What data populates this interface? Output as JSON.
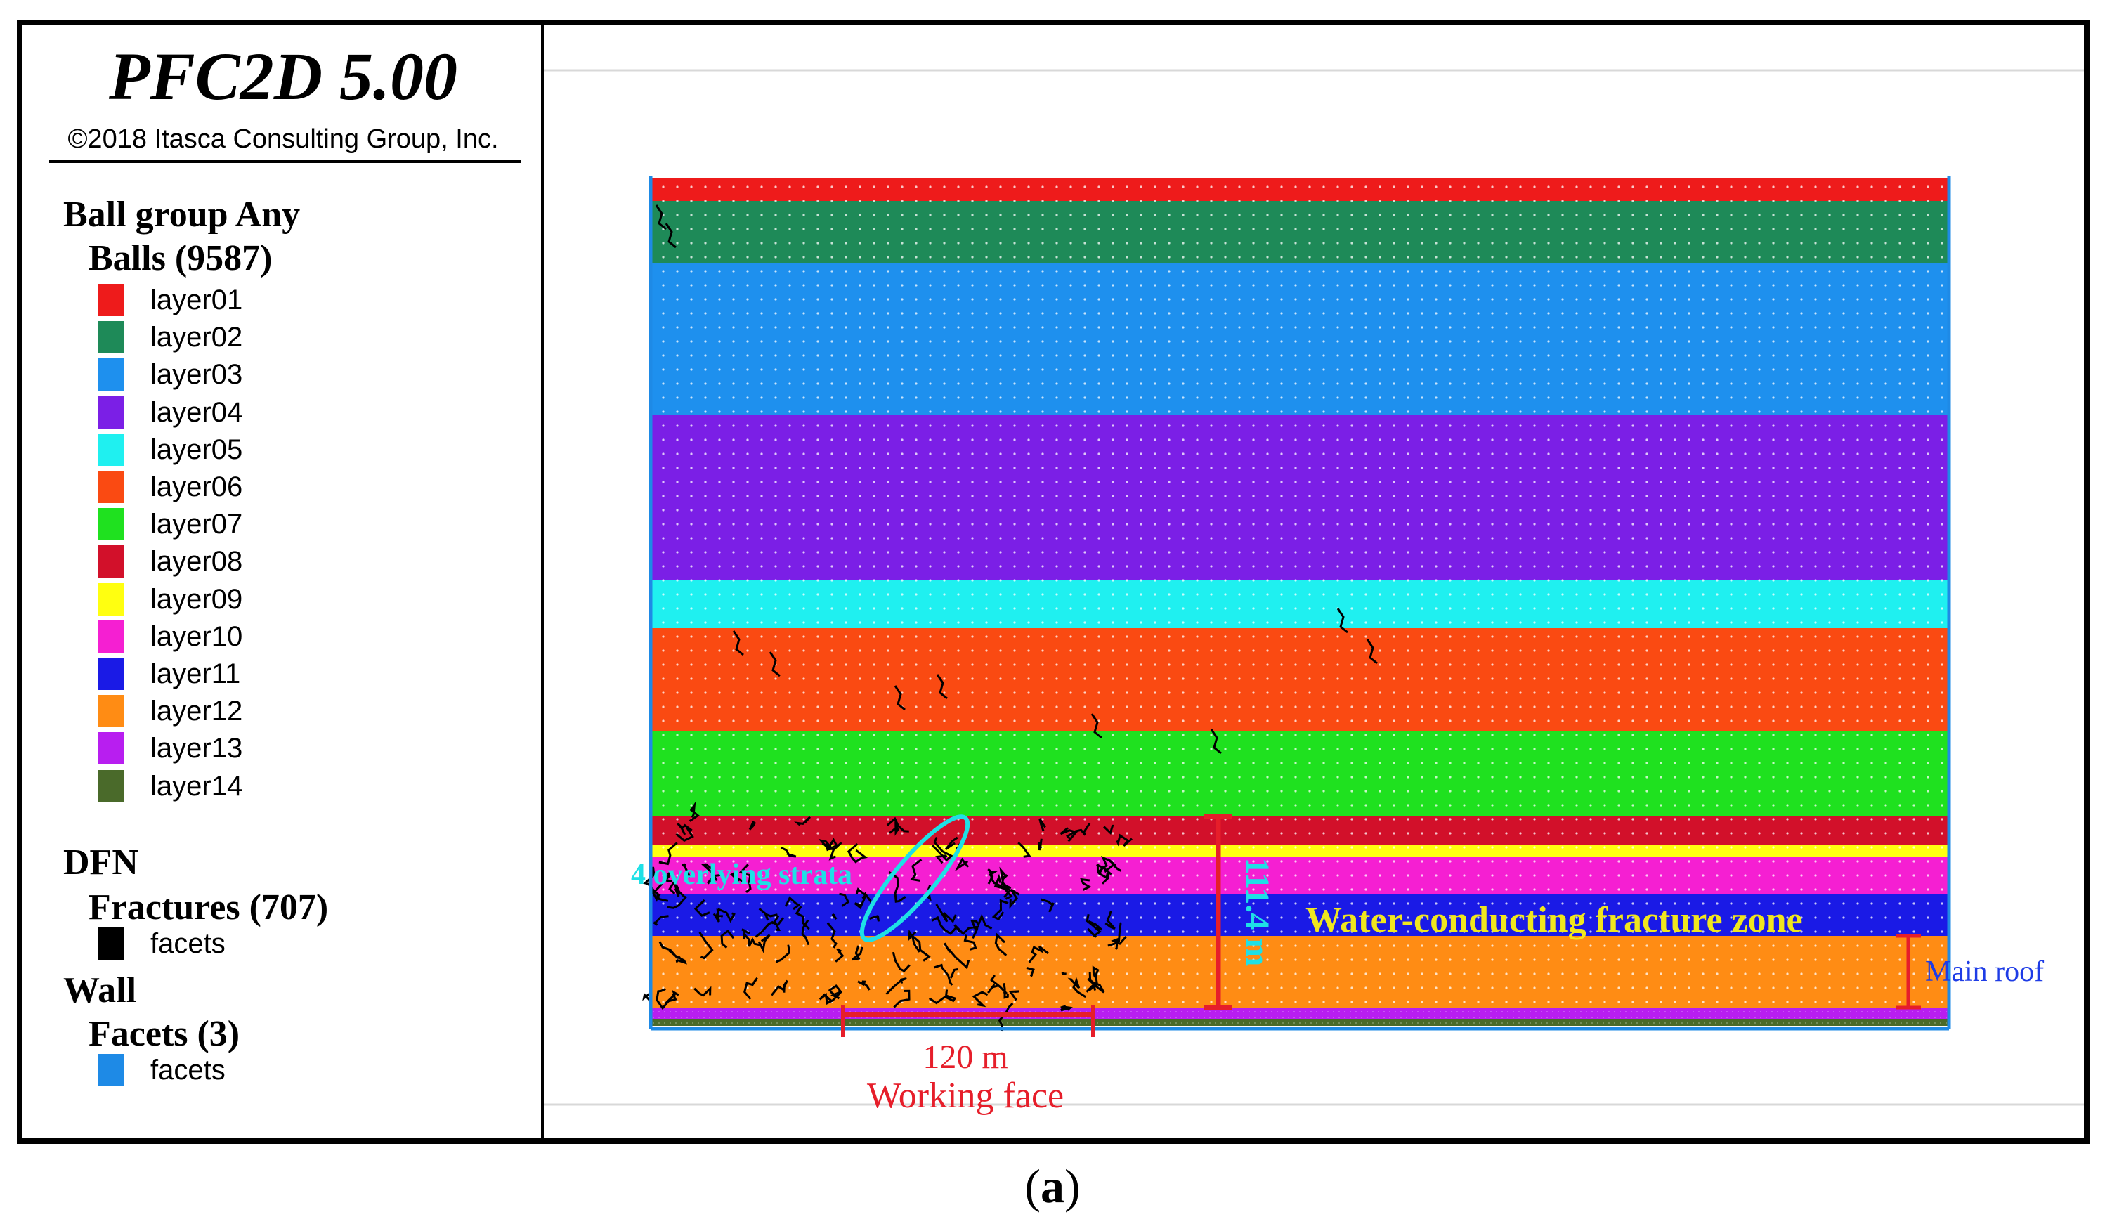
{
  "app": {
    "title": "PFC2D 5.00",
    "copyright": "©2018 Itasca Consulting Group, Inc."
  },
  "legend": {
    "ball_group_heading": "Ball group Any",
    "balls_heading": "Balls (9587)",
    "layers": [
      {
        "label": "layer01",
        "color": "#ee1b1b"
      },
      {
        "label": "layer02",
        "color": "#1e8a58"
      },
      {
        "label": "layer03",
        "color": "#1e90ee"
      },
      {
        "label": "layer04",
        "color": "#7b1fe6"
      },
      {
        "label": "layer05",
        "color": "#1ff0f0"
      },
      {
        "label": "layer06",
        "color": "#fa4a12"
      },
      {
        "label": "layer07",
        "color": "#1fe11f"
      },
      {
        "label": "layer08",
        "color": "#d2102a"
      },
      {
        "label": "layer09",
        "color": "#ffff10"
      },
      {
        "label": "layer10",
        "color": "#f51fd2"
      },
      {
        "label": "layer11",
        "color": "#1a1ae6"
      },
      {
        "label": "layer12",
        "color": "#ff8c14"
      },
      {
        "label": "layer13",
        "color": "#b81ef0"
      },
      {
        "label": "layer14",
        "color": "#4a6a2a"
      }
    ],
    "dfn_heading": "DFN",
    "fractures_heading": "Fractures (707)",
    "fractures_item": {
      "label": "facets",
      "color": "#000000"
    },
    "wall_heading": "Wall",
    "wall_facets_heading": "Facets (3)",
    "wall_item": {
      "label": "facets",
      "color": "#1e8ae6"
    }
  },
  "annotations": {
    "overlying_strata": "4 overlying strata",
    "fracture_zone": "Water-conducting fracture zone",
    "main_roof": "Main roof",
    "height": "111.4 m",
    "width": "120 m",
    "working_face": "Working face"
  },
  "colors": {
    "annotation_cyan": "#1ee0e6",
    "annotation_yellow": "#f0e61e",
    "annotation_red": "#e61e2a",
    "annotation_blue": "#1e3ce6",
    "wall": "#1e8ae6"
  },
  "caption": {
    "prefix": "(",
    "letter": "a",
    "suffix": ")"
  }
}
